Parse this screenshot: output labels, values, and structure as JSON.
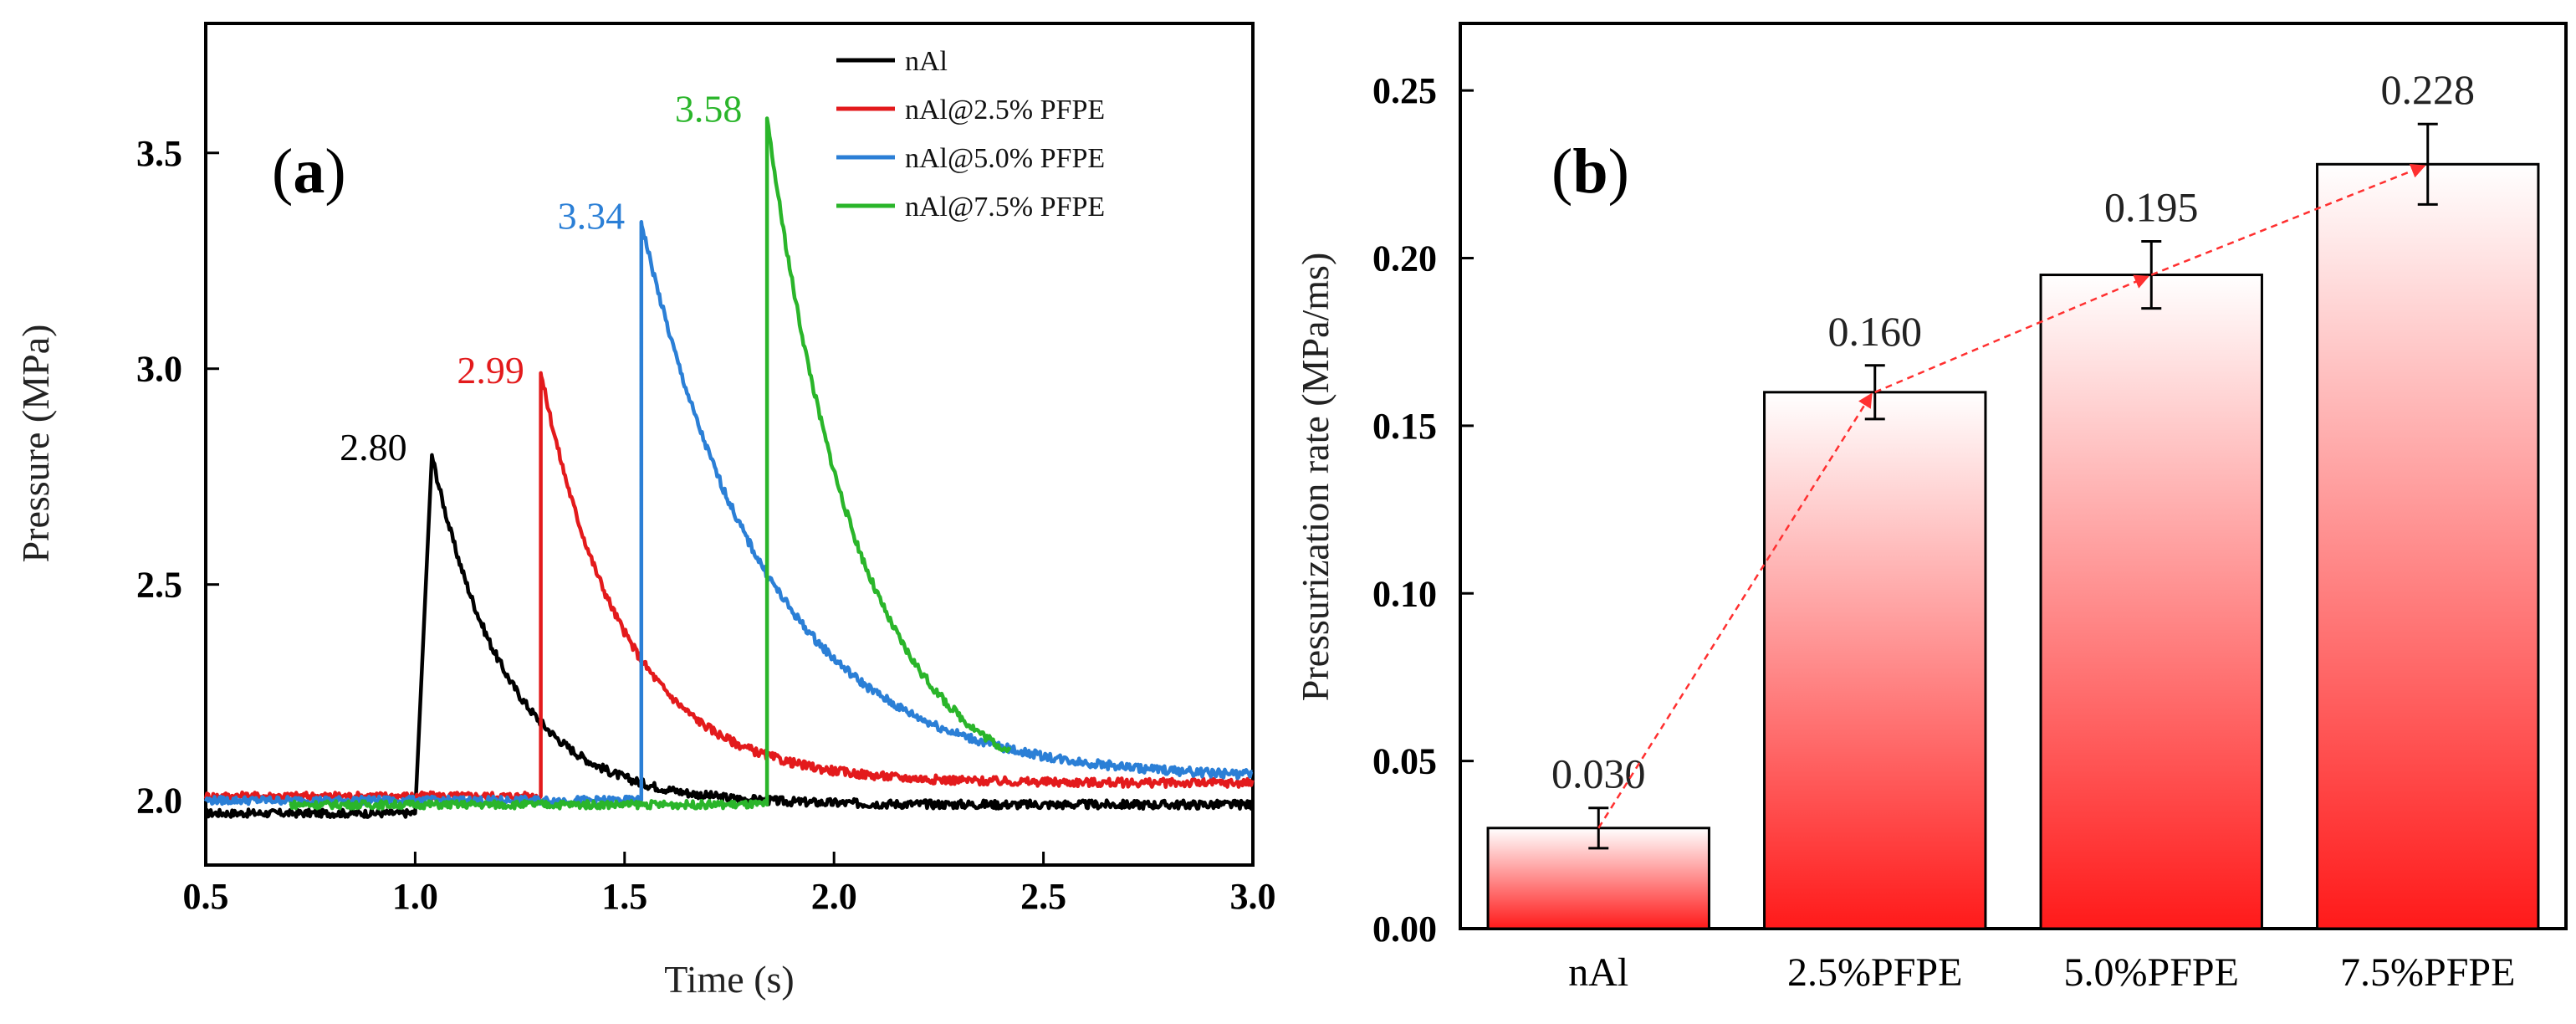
{
  "chart_data": [
    {
      "type": "line",
      "panel_label": "a",
      "xlabel": "Time (s)",
      "ylabel": "Pressure (MPa)",
      "xlim": [
        0.5,
        3.0
      ],
      "ylim": [
        1.85,
        3.8
      ],
      "xticks": [
        "0.5",
        "1.0",
        "1.5",
        "2.0",
        "2.5",
        "3.0"
      ],
      "yticks": [
        "2.0",
        "2.5",
        "3.0",
        "3.5"
      ],
      "legend_position": "top-right",
      "series": [
        {
          "name": "nAl",
          "color": "#000000",
          "start": 0.5,
          "end": 3.0,
          "baseline": 1.97,
          "tail": 1.99,
          "rise_start": 1.0,
          "rise_time": 1.04,
          "peak": 2.8,
          "tau": 0.18,
          "peak_label": "2.80"
        },
        {
          "name": "nAl@2.5% PFPE",
          "color": "#e31a1c",
          "start": 0.5,
          "end": 3.0,
          "baseline": 2.01,
          "tail": 2.04,
          "rise_start": 1.3,
          "rise_time": 1.3,
          "peak": 2.99,
          "tau": 0.2,
          "peak_label": "2.99"
        },
        {
          "name": "nAl@5.0% PFPE",
          "color": "#2b7fd6",
          "start": 0.5,
          "end": 3.0,
          "baseline": 2.0,
          "tail": 2.05,
          "rise_start": 1.54,
          "rise_time": 1.54,
          "peak": 3.34,
          "tau": 0.3,
          "peak_label": "3.34"
        },
        {
          "name": "nAl@7.5% PFPE",
          "color": "#2ab52a",
          "start": 0.7,
          "end": 2.42,
          "baseline": 1.99,
          "tail": 2.0,
          "rise_start": 1.84,
          "rise_time": 1.84,
          "peak": 3.58,
          "tau": 0.22,
          "peak_label": "3.58"
        }
      ]
    },
    {
      "type": "bar",
      "panel_label": "b",
      "xlabel": "",
      "ylabel": "Pressurization rate (MPa/ms)",
      "ylim": [
        0.0,
        0.27
      ],
      "yticks": [
        "0.00",
        "0.05",
        "0.10",
        "0.15",
        "0.20",
        "0.25"
      ],
      "categories": [
        "nAl",
        "2.5%PFPE",
        "5.0%PFPE",
        "7.5%PFPE"
      ],
      "values": [
        0.03,
        0.16,
        0.195,
        0.228
      ],
      "value_labels": [
        "0.030",
        "0.160",
        "0.195",
        "0.228"
      ],
      "errors": [
        0.006,
        0.008,
        0.01,
        0.012
      ],
      "bar_gradient": [
        "#ffffff",
        "#ff1a1a"
      ],
      "trend_color": "#ff3030"
    }
  ]
}
